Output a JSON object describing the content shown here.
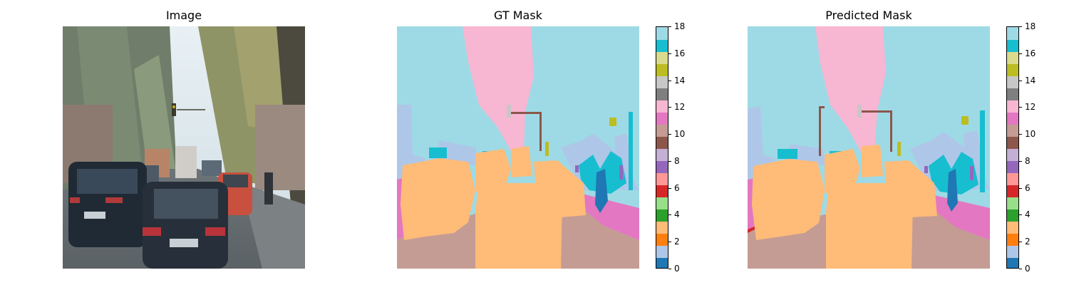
{
  "panels": [
    {
      "id": "image",
      "title": "Image"
    },
    {
      "id": "gt-mask",
      "title": "GT Mask"
    },
    {
      "id": "predicted-mask",
      "title": "Predicted Mask"
    }
  ],
  "colorbar": {
    "min": 0,
    "max": 18,
    "ticks": [
      "0",
      "2",
      "4",
      "6",
      "8",
      "10",
      "12",
      "14",
      "16",
      "18"
    ],
    "palette": [
      "#1f77b4",
      "#aec7e8",
      "#ff7f0e",
      "#ffbb78",
      "#2ca02c",
      "#98df8a",
      "#d62728",
      "#ff9896",
      "#9467bd",
      "#c5b0d5",
      "#8c564b",
      "#c49c94",
      "#e377c2",
      "#f7b6d2",
      "#7f7f7f",
      "#c7c7c7",
      "#bcbd22",
      "#dbdb8d",
      "#17becf",
      "#9edae5"
    ]
  }
}
